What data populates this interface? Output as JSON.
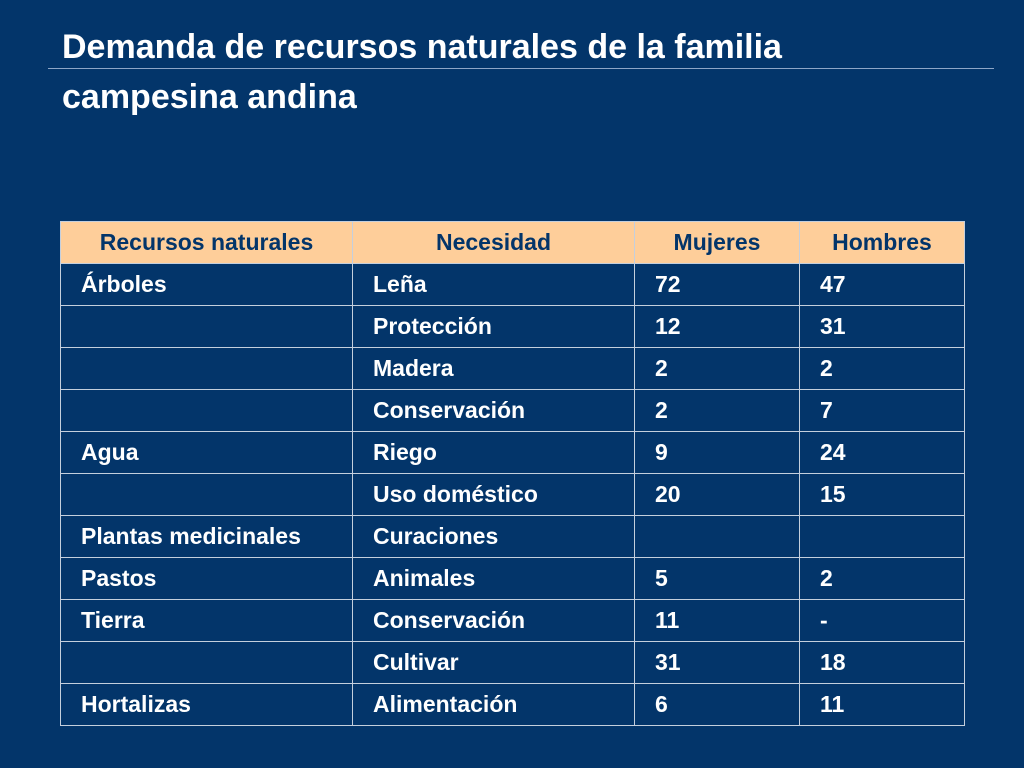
{
  "slide": {
    "title_line1": "Demanda de recursos naturales de la familia",
    "title_line2": "campesina andina"
  },
  "table": {
    "headers": [
      "Recursos naturales",
      "Necesidad",
      "Mujeres",
      "Hombres"
    ],
    "rows": [
      [
        "Árboles",
        "Leña",
        "72",
        "47"
      ],
      [
        "",
        "Protección",
        "12",
        "31"
      ],
      [
        "",
        "Madera",
        "2",
        "2"
      ],
      [
        "",
        "Conservación",
        "2",
        "7"
      ],
      [
        "Agua",
        "Riego",
        "9",
        "24"
      ],
      [
        "",
        "Uso doméstico",
        "20",
        "15"
      ],
      [
        "Plantas medicinales",
        "Curaciones",
        "",
        ""
      ],
      [
        "Pastos",
        "Animales",
        "5",
        "2"
      ],
      [
        "Tierra",
        "Conservación",
        "11",
        "-"
      ],
      [
        "",
        "Cultivar",
        "31",
        "18"
      ],
      [
        "Hortalizas",
        "Alimentación",
        "6",
        "11"
      ]
    ]
  },
  "colors": {
    "background": "#03356a",
    "header_fill": "#fece9a",
    "header_text": "#03356a",
    "body_text": "#ffffff"
  }
}
